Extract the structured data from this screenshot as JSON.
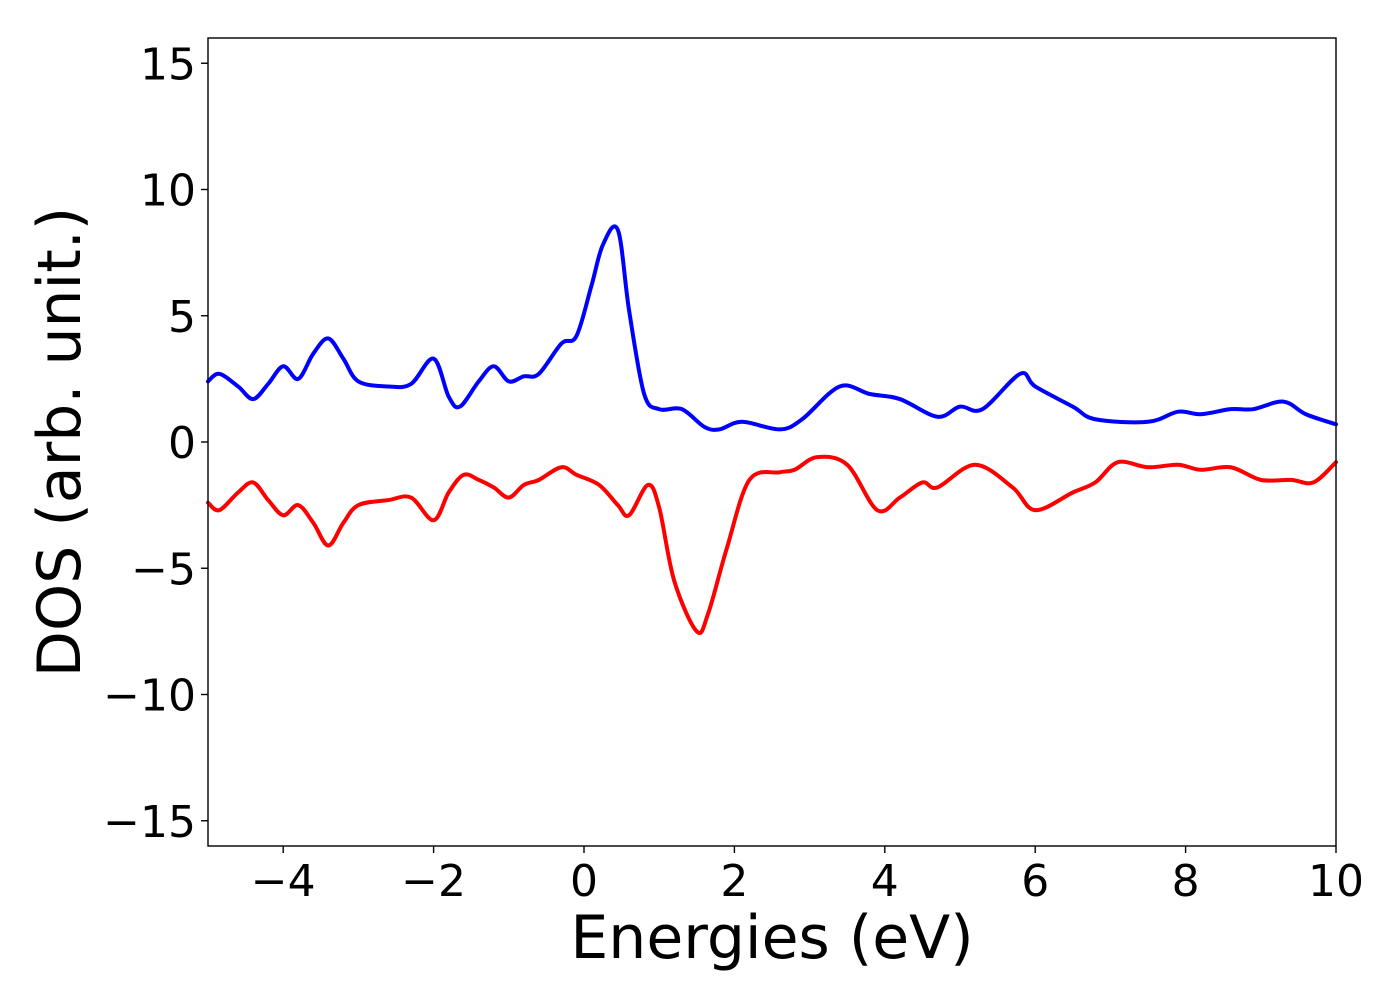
{
  "chart_data": {
    "type": "line",
    "title": "",
    "xlabel": "Energies (eV)",
    "ylabel": "DOS (arb. unit.)",
    "xlim": [
      -5,
      10
    ],
    "ylim": [
      -16,
      16
    ],
    "xticks": [
      -4,
      -2,
      0,
      2,
      4,
      6,
      8,
      10
    ],
    "xtick_labels": [
      "−4",
      "−2",
      "0",
      "2",
      "4",
      "6",
      "8",
      "10"
    ],
    "yticks": [
      15,
      10,
      5,
      0,
      -5,
      -10,
      -15
    ],
    "ytick_labels": [
      "15",
      "10",
      "5",
      "0",
      "−5",
      "−10",
      "−15"
    ],
    "grid": false,
    "legend": "none",
    "series": [
      {
        "color": "#0000ff",
        "x": [
          -5.0,
          -4.85,
          -4.6,
          -4.4,
          -4.2,
          -4.0,
          -3.8,
          -3.6,
          -3.4,
          -3.2,
          -3.0,
          -2.6,
          -2.3,
          -2.0,
          -1.8,
          -1.65,
          -1.4,
          -1.2,
          -1.0,
          -0.8,
          -0.6,
          -0.3,
          -0.1,
          0.1,
          0.25,
          0.45,
          0.6,
          0.8,
          1.0,
          1.3,
          1.6,
          1.8,
          2.1,
          2.6,
          2.9,
          3.4,
          3.8,
          4.2,
          4.7,
          5.0,
          5.3,
          5.8,
          6.0,
          6.5,
          6.8,
          7.5,
          7.9,
          8.2,
          8.6,
          8.9,
          9.3,
          9.6,
          10.0
        ],
        "y": [
          2.4,
          2.7,
          2.2,
          1.7,
          2.3,
          3.0,
          2.5,
          3.5,
          4.1,
          3.3,
          2.4,
          2.2,
          2.3,
          3.3,
          1.8,
          1.4,
          2.4,
          3.0,
          2.4,
          2.6,
          2.7,
          3.9,
          4.2,
          6.2,
          7.8,
          8.4,
          5.2,
          1.9,
          1.3,
          1.3,
          0.6,
          0.5,
          0.8,
          0.5,
          0.9,
          2.2,
          1.9,
          1.7,
          1.0,
          1.4,
          1.3,
          2.7,
          2.2,
          1.4,
          0.9,
          0.8,
          1.2,
          1.1,
          1.3,
          1.3,
          1.6,
          1.1,
          0.7
        ]
      },
      {
        "color": "#ff0000",
        "x": [
          -5.0,
          -4.85,
          -4.6,
          -4.4,
          -4.2,
          -4.0,
          -3.8,
          -3.6,
          -3.4,
          -3.2,
          -3.0,
          -2.6,
          -2.3,
          -2.0,
          -1.8,
          -1.6,
          -1.4,
          -1.2,
          -1.0,
          -0.8,
          -0.6,
          -0.3,
          -0.1,
          0.2,
          0.45,
          0.6,
          0.85,
          1.0,
          1.2,
          1.5,
          1.65,
          1.9,
          2.2,
          2.6,
          2.8,
          3.1,
          3.5,
          3.9,
          4.2,
          4.5,
          4.7,
          5.2,
          5.7,
          6.0,
          6.5,
          6.8,
          7.1,
          7.5,
          7.9,
          8.2,
          8.6,
          9.0,
          9.4,
          9.7,
          10.0
        ],
        "y": [
          -2.4,
          -2.7,
          -2.0,
          -1.6,
          -2.3,
          -2.9,
          -2.5,
          -3.2,
          -4.1,
          -3.2,
          -2.5,
          -2.3,
          -2.2,
          -3.1,
          -2.0,
          -1.3,
          -1.5,
          -1.8,
          -2.2,
          -1.7,
          -1.5,
          -1.0,
          -1.3,
          -1.7,
          -2.5,
          -2.9,
          -1.7,
          -2.6,
          -5.5,
          -7.5,
          -6.8,
          -4.2,
          -1.5,
          -1.2,
          -1.1,
          -0.6,
          -0.9,
          -2.7,
          -2.2,
          -1.6,
          -1.8,
          -0.9,
          -1.8,
          -2.7,
          -2.0,
          -1.6,
          -0.8,
          -1.0,
          -0.9,
          -1.1,
          -1.0,
          -1.5,
          -1.5,
          -1.6,
          -0.8
        ]
      }
    ]
  }
}
